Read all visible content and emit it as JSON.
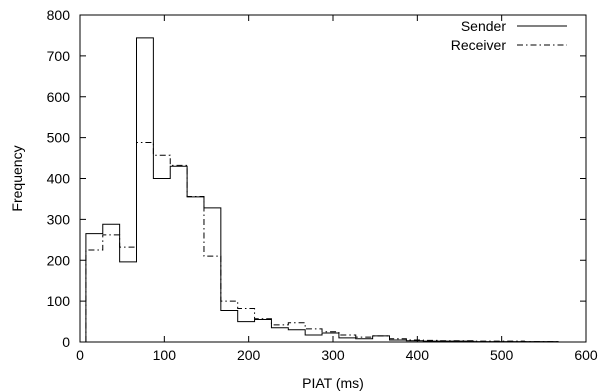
{
  "chart_data": {
    "type": "line",
    "title": "",
    "xlabel": "PIAT (ms)",
    "ylabel": "Frequency",
    "xlim": [
      0,
      600
    ],
    "ylim": [
      0,
      800
    ],
    "x_ticks": [
      0,
      100,
      200,
      300,
      400,
      500,
      600
    ],
    "y_ticks": [
      0,
      100,
      200,
      300,
      400,
      500,
      600,
      700,
      800
    ],
    "legend_position": "top-right",
    "grid": false,
    "bin_edges": [
      7,
      27,
      47,
      67,
      87,
      107,
      127,
      147,
      167,
      187,
      207,
      227,
      247,
      267,
      287,
      307,
      327,
      347,
      367,
      387,
      407,
      427,
      447,
      467,
      487,
      507,
      527,
      547,
      567
    ],
    "series": [
      {
        "name": "Sender",
        "style": "solid",
        "color": "#000000",
        "values": [
          265,
          288,
          196,
          744,
          400,
          430,
          355,
          328,
          77,
          50,
          55,
          35,
          30,
          17,
          22,
          10,
          8,
          15,
          5,
          3,
          2,
          2,
          2,
          1,
          1,
          1,
          1,
          1
        ]
      },
      {
        "name": "Receiver",
        "style": "dash-dot",
        "color": "#000000",
        "values": [
          225,
          262,
          232,
          488,
          457,
          432,
          356,
          210,
          100,
          82,
          57,
          42,
          47,
          32,
          25,
          17,
          12,
          15,
          8,
          5,
          4,
          3,
          3,
          2,
          2,
          2,
          1,
          1
        ]
      }
    ]
  }
}
